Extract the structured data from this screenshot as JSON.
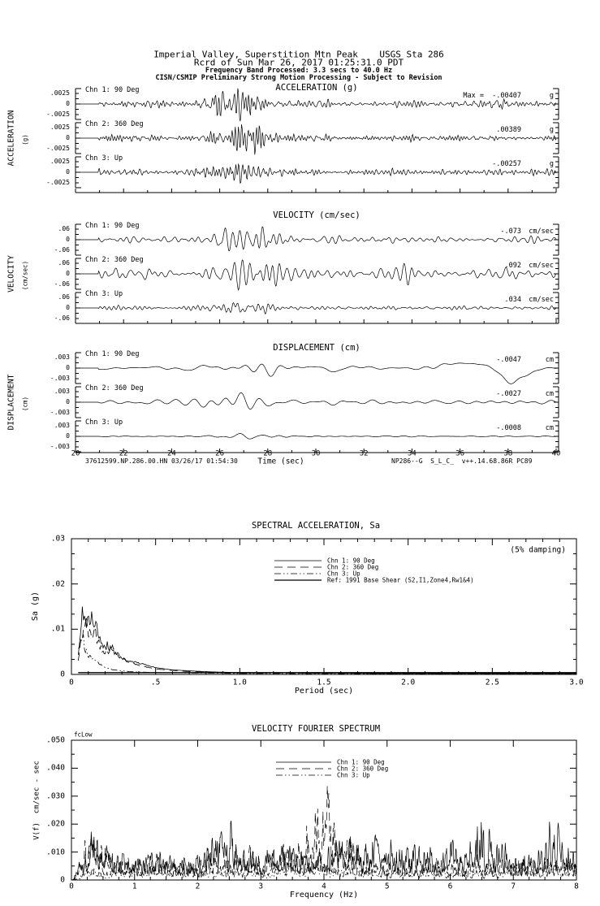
{
  "header": {
    "line1": "Imperial Valley, Superstition Mtn Peak    USGS Sta 286",
    "line2": "Rcrd of Sun Mar 26, 2017 01:25:31.0 PDT",
    "line3": "Frequency Band Processed: 3.3 secs to 40.0 Hz",
    "line4": "CISN/CSMIP Preliminary Strong Motion Processing - Subject to Revision"
  },
  "footer": {
    "left": "37612599.NP.286.00.HN 03/26/17 01:54:30",
    "right": "NP286--G  S_L_C_  v++.14.68.86R PC89"
  },
  "colors": {
    "ink": "#000000",
    "paper": "#ffffff"
  },
  "chart_data": [
    {
      "type": "line",
      "id": "acceleration",
      "kind": "timeseries",
      "title": "ACCELERATION (g)",
      "side_label": "ACCELERATION",
      "side_unit": "(g)",
      "scale": 0.0025,
      "ytick_labels": [
        ".0025",
        "0",
        "-.0025"
      ],
      "xlim": [
        20,
        40
      ],
      "channels": [
        {
          "name": "Chn 1: 90 Deg",
          "max_text": "Max =  -.00407",
          "peak": -0.00407,
          "unit": "g",
          "ratio": 1.63,
          "seed": 101,
          "freq": [
            2.0,
            9.0
          ],
          "base": 0.3,
          "burst": {
            "tc": 26.9,
            "w": 0.8
          }
        },
        {
          "name": "Chn 2: 360 Deg",
          "max_text": ".00389",
          "peak": 0.00389,
          "unit": "g",
          "ratio": 1.56,
          "seed": 102,
          "freq": [
            2.0,
            9.0
          ],
          "base": 0.32,
          "burst": {
            "tc": 27.1,
            "w": 0.85
          }
        },
        {
          "name": "Chn 3: Up",
          "max_text": "-.00257",
          "peak": -0.00257,
          "unit": "g",
          "ratio": 1.03,
          "seed": 103,
          "freq": [
            2.5,
            10.0
          ],
          "base": 0.3,
          "burst": {
            "tc": 26.8,
            "w": 0.7
          }
        }
      ]
    },
    {
      "type": "line",
      "id": "velocity",
      "kind": "timeseries",
      "title": "VELOCITY (cm/sec)",
      "side_label": "VELOCITY",
      "side_unit": "(cm/sec)",
      "scale": 0.06,
      "ytick_labels": [
        ".06",
        "0",
        "-.06"
      ],
      "xlim": [
        20,
        40
      ],
      "channels": [
        {
          "name": "Chn 1: 90 Deg",
          "max_text": "-.073",
          "peak": -0.073,
          "unit": "cm/sec",
          "ratio": 1.22,
          "seed": 201,
          "freq": [
            0.8,
            4.5
          ],
          "base": 0.34,
          "burst": {
            "tc": 27.0,
            "w": 0.9
          }
        },
        {
          "name": "Chn 2: 360 Deg",
          "max_text": ".092",
          "peak": 0.092,
          "unit": "cm/sec",
          "ratio": 1.53,
          "seed": 202,
          "freq": [
            0.8,
            4.5
          ],
          "base": 0.33,
          "burst": {
            "tc": 27.1,
            "w": 0.9
          }
        },
        {
          "name": "Chn 3: Up",
          "max_text": ".034",
          "peak": 0.034,
          "unit": "cm/sec",
          "ratio": 0.57,
          "seed": 203,
          "freq": [
            1.0,
            5.5
          ],
          "base": 0.4,
          "burst": {
            "tc": 26.8,
            "w": 0.8
          }
        }
      ]
    },
    {
      "type": "line",
      "id": "displacement",
      "kind": "timeseries",
      "title": "DISPLACEMENT (cm)",
      "side_label": "DISPLACEMENT",
      "side_unit": "(cm)",
      "scale": 0.003,
      "ytick_labels": [
        ".003",
        "0",
        "-.003"
      ],
      "xlim": [
        20,
        40
      ],
      "xlabel": "Time (sec)",
      "xticks": [
        "20",
        "22",
        "24",
        "26",
        "28",
        "30",
        "32",
        "34",
        "36",
        "38",
        "40"
      ],
      "channels": [
        {
          "name": "Chn 1: 90 Deg",
          "max_text": "-.0047",
          "peak": -0.0047,
          "unit": "cm",
          "ratio": 1.57,
          "seed": 301,
          "freq": [
            0.3,
            1.6
          ],
          "base": 0.4,
          "burst": {
            "tc": 27.0,
            "w": 1.3
          },
          "dip": {
            "t": 38.15,
            "w": 0.5
          },
          "bump": {
            "t": 36.6,
            "w": 1.0,
            "a": 0.5
          }
        },
        {
          "name": "Chn 2: 360 Deg",
          "max_text": "-.0027",
          "peak": -0.0027,
          "unit": "cm",
          "ratio": 0.9,
          "seed": 302,
          "freq": [
            0.3,
            1.7
          ],
          "base": 0.45,
          "burst": {
            "tc": 26.6,
            "w": 1.2
          }
        },
        {
          "name": "Chn 3: Up",
          "max_text": "-.0008",
          "peak": -0.0008,
          "unit": "cm",
          "ratio": 0.27,
          "seed": 303,
          "freq": [
            0.4,
            2.0
          ],
          "base": 0.45,
          "burst": {
            "tc": 26.9,
            "w": 1.1
          }
        }
      ]
    },
    {
      "type": "line",
      "id": "spectral_acceleration",
      "title": "SPECTRAL ACCELERATION, Sa",
      "damping_note": "(5% damping)",
      "xlabel": "Period (sec)",
      "ylabel": "Sa (g)",
      "xlim": [
        0,
        3
      ],
      "ylim": [
        0,
        0.03
      ],
      "xticks": [
        "0",
        ".5",
        "1.0",
        "1.5",
        "2.0",
        "2.5",
        "3.0"
      ],
      "yticks": [
        ".03",
        ".02",
        ".01",
        "0"
      ],
      "legend": [
        {
          "label": "Chn 1: 90 Deg",
          "style": "solid"
        },
        {
          "label": "Chn 2: 360 Deg",
          "style": "longdash"
        },
        {
          "label": "Chn 3: Up",
          "style": "dashdotdot"
        },
        {
          "label": "Ref: 1991 Base Shear (S2,I1,Zone4,Rw1&4)",
          "style": "refsolid"
        }
      ],
      "series": [
        {
          "name": "Chn 1: 90 Deg",
          "style": "solid",
          "seed": 41,
          "points": [
            [
              0.04,
              0.004
            ],
            [
              0.055,
              0.009
            ],
            [
              0.065,
              0.0135
            ],
            [
              0.075,
              0.011
            ],
            [
              0.085,
              0.0125
            ],
            [
              0.1,
              0.0115
            ],
            [
              0.12,
              0.012
            ],
            [
              0.14,
              0.0115
            ],
            [
              0.16,
              0.009
            ],
            [
              0.19,
              0.0065
            ],
            [
              0.22,
              0.0065
            ],
            [
              0.25,
              0.005
            ],
            [
              0.3,
              0.0035
            ],
            [
              0.35,
              0.003
            ],
            [
              0.4,
              0.0025
            ],
            [
              0.45,
              0.002
            ],
            [
              0.5,
              0.0015
            ],
            [
              0.6,
              0.001
            ],
            [
              0.8,
              0.0006
            ],
            [
              1.0,
              0.0004
            ],
            [
              1.5,
              0.0003
            ],
            [
              2.0,
              0.0002
            ],
            [
              3.0,
              0.0002
            ]
          ]
        },
        {
          "name": "Chn 2: 360 Deg",
          "style": "longdash",
          "seed": 42,
          "points": [
            [
              0.04,
              0.003
            ],
            [
              0.06,
              0.008
            ],
            [
              0.075,
              0.0105
            ],
            [
              0.09,
              0.0115
            ],
            [
              0.1,
              0.009
            ],
            [
              0.12,
              0.0085
            ],
            [
              0.14,
              0.01
            ],
            [
              0.16,
              0.007
            ],
            [
              0.2,
              0.005
            ],
            [
              0.25,
              0.006
            ],
            [
              0.28,
              0.0045
            ],
            [
              0.32,
              0.003
            ],
            [
              0.4,
              0.002
            ],
            [
              0.5,
              0.0012
            ],
            [
              0.7,
              0.0006
            ],
            [
              1.0,
              0.0003
            ],
            [
              2.0,
              0.0002
            ],
            [
              3.0,
              0.0002
            ]
          ]
        },
        {
          "name": "Chn 3: Up",
          "style": "dashdotdot",
          "seed": 43,
          "points": [
            [
              0.04,
              0.005
            ],
            [
              0.055,
              0.0085
            ],
            [
              0.065,
              0.0095
            ],
            [
              0.08,
              0.006
            ],
            [
              0.1,
              0.004
            ],
            [
              0.13,
              0.0035
            ],
            [
              0.16,
              0.0025
            ],
            [
              0.2,
              0.0015
            ],
            [
              0.25,
              0.001
            ],
            [
              0.35,
              0.0006
            ],
            [
              0.5,
              0.0004
            ],
            [
              1.0,
              0.0002
            ],
            [
              3.0,
              0.0001
            ]
          ]
        },
        {
          "name": "Ref: 1991 Base Shear (S2,I1,Zone4,Rw1&4)",
          "style": "refsolid",
          "seed": 44,
          "points": [
            [
              0.04,
              0.0004
            ],
            [
              3.0,
              0.0004
            ]
          ]
        }
      ]
    },
    {
      "type": "line",
      "id": "velocity_fourier_spectrum",
      "title": "VELOCITY FOURIER SPECTRUM",
      "corner_marker": "fcLow",
      "xlabel": "Frequency (Hz)",
      "ylabel": "V(f)  cm/sec - sec",
      "xlim": [
        0,
        8
      ],
      "ylim": [
        0,
        0.05
      ],
      "xticks": [
        "0",
        "1",
        "2",
        "3",
        "4",
        "5",
        "6",
        "7",
        "8"
      ],
      "yticks": [
        ".050",
        ".040",
        ".030",
        ".020",
        ".010",
        "0"
      ],
      "legend": [
        {
          "label": "Chn 1: 90 Deg",
          "style": "solid"
        },
        {
          "label": "Chn 2: 360 Deg",
          "style": "longdash"
        },
        {
          "label": "Chn 3: Up",
          "style": "dashdotdot"
        }
      ],
      "series": [
        {
          "name": "Chn 1: 90 Deg",
          "style": "solid",
          "seed": 71,
          "envelope": [
            [
              0,
              0
            ],
            [
              0.15,
              0.012
            ],
            [
              0.25,
              0.02
            ],
            [
              0.35,
              0.027
            ],
            [
              0.5,
              0.022
            ],
            [
              0.7,
              0.012
            ],
            [
              1.0,
              0.011
            ],
            [
              1.3,
              0.013
            ],
            [
              1.6,
              0.011
            ],
            [
              2.0,
              0.013
            ],
            [
              2.3,
              0.02
            ],
            [
              2.5,
              0.026
            ],
            [
              2.7,
              0.016
            ],
            [
              3.0,
              0.013
            ],
            [
              3.3,
              0.016
            ],
            [
              3.6,
              0.014
            ],
            [
              4.0,
              0.016
            ],
            [
              4.3,
              0.026
            ],
            [
              4.6,
              0.018
            ],
            [
              4.9,
              0.021
            ],
            [
              5.2,
              0.017
            ],
            [
              5.4,
              0.022
            ],
            [
              5.7,
              0.014
            ],
            [
              6.0,
              0.018
            ],
            [
              6.2,
              0.016
            ],
            [
              6.4,
              0.033
            ],
            [
              6.6,
              0.022
            ],
            [
              6.8,
              0.019
            ],
            [
              7.0,
              0.012
            ],
            [
              7.3,
              0.014
            ],
            [
              7.6,
              0.03
            ],
            [
              7.8,
              0.018
            ],
            [
              8.0,
              0.012
            ]
          ]
        },
        {
          "name": "Chn 2: 360 Deg",
          "style": "longdash",
          "seed": 72,
          "envelope": [
            [
              0,
              0
            ],
            [
              0.2,
              0.018
            ],
            [
              0.3,
              0.022
            ],
            [
              0.5,
              0.015
            ],
            [
              0.8,
              0.01
            ],
            [
              1.2,
              0.012
            ],
            [
              1.6,
              0.009
            ],
            [
              2.0,
              0.011
            ],
            [
              2.4,
              0.013
            ],
            [
              2.8,
              0.014
            ],
            [
              3.2,
              0.012
            ],
            [
              3.6,
              0.02
            ],
            [
              3.9,
              0.034
            ],
            [
              4.05,
              0.044
            ],
            [
              4.2,
              0.03
            ],
            [
              4.35,
              0.024
            ],
            [
              4.6,
              0.012
            ],
            [
              5.0,
              0.011
            ],
            [
              5.5,
              0.01
            ],
            [
              6.0,
              0.009
            ],
            [
              6.5,
              0.011
            ],
            [
              7.0,
              0.009
            ],
            [
              7.5,
              0.012
            ],
            [
              8.0,
              0.009
            ]
          ]
        },
        {
          "name": "Chn 3: Up",
          "style": "dashdotdot",
          "seed": 73,
          "envelope": [
            [
              0,
              0
            ],
            [
              0.3,
              0.006
            ],
            [
              0.8,
              0.005
            ],
            [
              1.5,
              0.007
            ],
            [
              2.0,
              0.006
            ],
            [
              3.0,
              0.005
            ],
            [
              3.5,
              0.007
            ],
            [
              4.0,
              0.009
            ],
            [
              4.5,
              0.007
            ],
            [
              5.0,
              0.006
            ],
            [
              5.5,
              0.005
            ],
            [
              6.0,
              0.006
            ],
            [
              6.5,
              0.005
            ],
            [
              7.0,
              0.006
            ],
            [
              7.5,
              0.009
            ],
            [
              8.0,
              0.007
            ]
          ]
        }
      ]
    }
  ]
}
